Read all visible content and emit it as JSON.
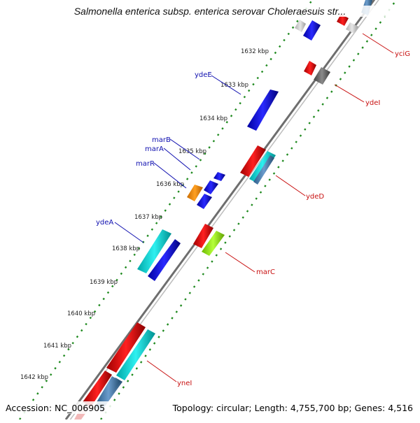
{
  "title": "Salmonella enterica subsp. enterica serovar Choleraesuis str...",
  "footer": {
    "accession": "Accession: NC_006905",
    "summary": "Topology: circular; Length: 4,755,700 bp; Genes: 4,516"
  },
  "colors": {
    "backbone": "#6e6e6e",
    "ruler_dots": "#1f8a1f",
    "label_forward": "#1010b0",
    "label_reverse": "#c81010"
  },
  "ruler": {
    "unit": "kbp",
    "ticks": [
      "1632 kbp",
      "1633 kbp",
      "1634 kbp",
      "1635 kbp",
      "1636 kbp",
      "1637 kbp",
      "1638 kbp",
      "1639 kbp",
      "1640 kbp",
      "1641 kbp",
      "1642 kbp"
    ]
  },
  "gene_labels": {
    "forward": [
      "ydeE",
      "marB",
      "marA",
      "marR",
      "ydeA"
    ],
    "reverse": [
      "yciG",
      "ydeI",
      "ydeD",
      "marC",
      "yneI"
    ]
  }
}
